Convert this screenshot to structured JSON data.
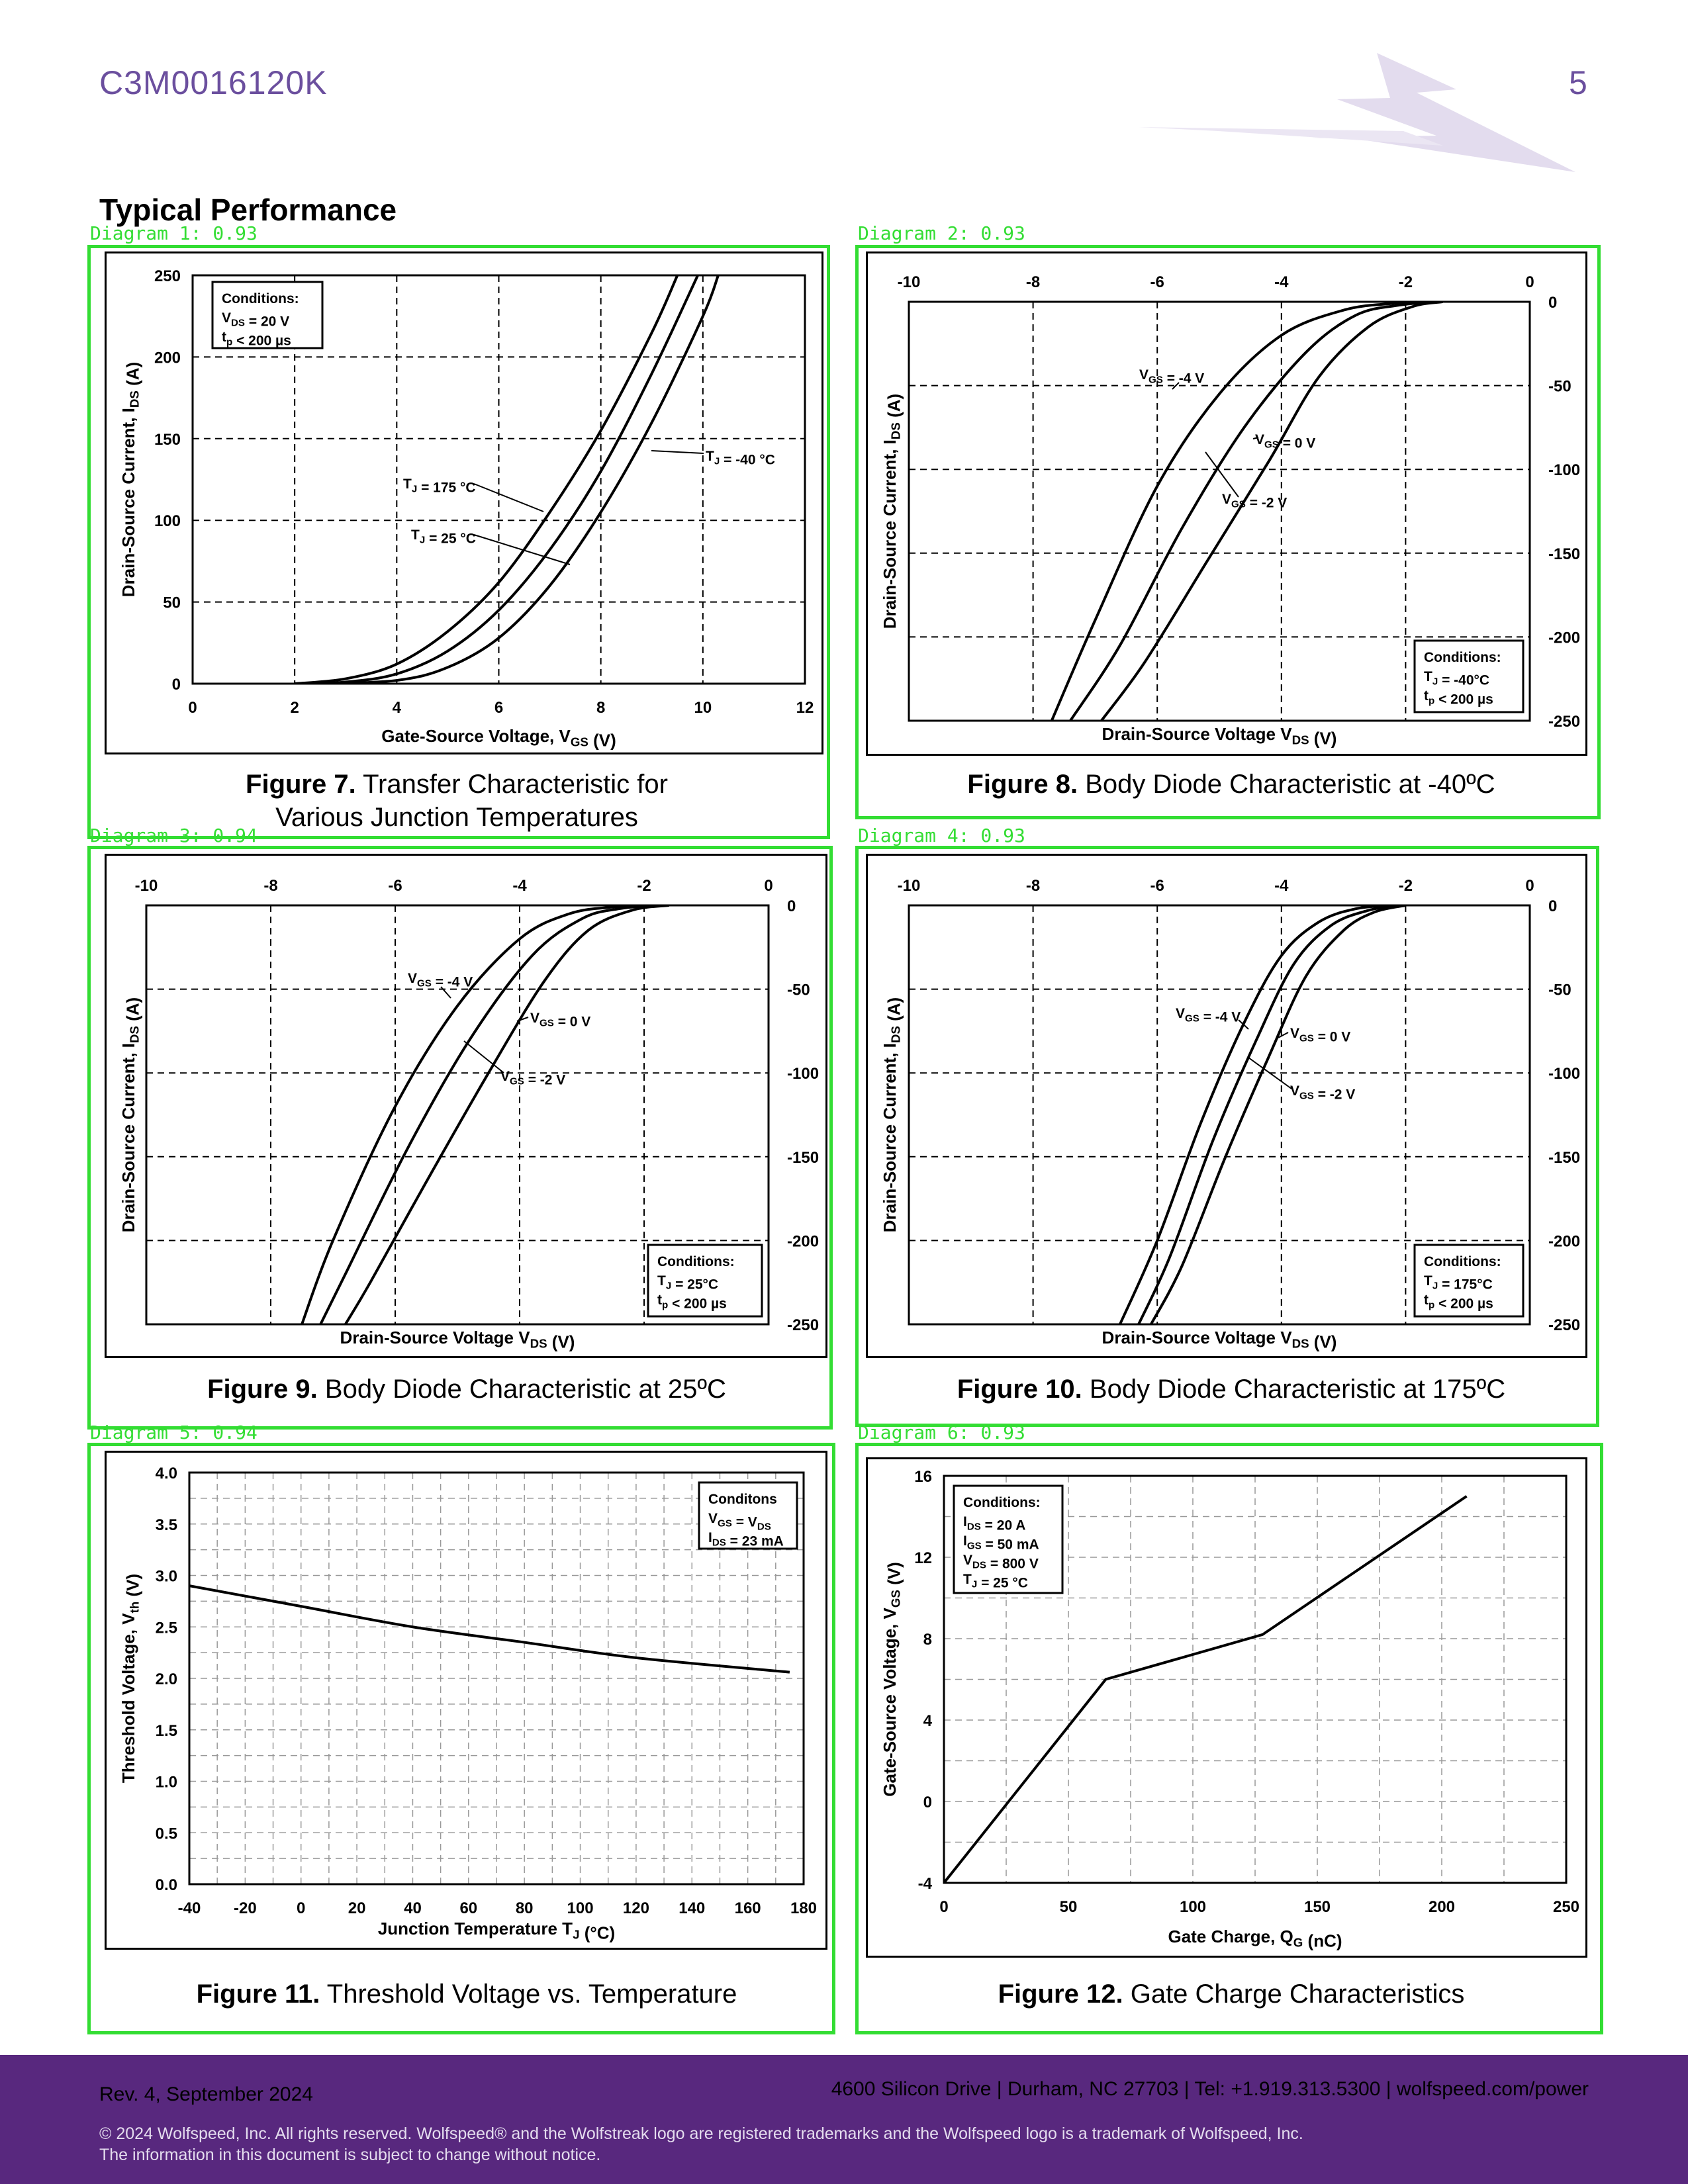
{
  "header": {
    "part_number": "C3M0016120K",
    "page_number": "5",
    "section_title": "Typical Performance"
  },
  "detections": [
    {
      "label": "Diagram 1: 0.93"
    },
    {
      "label": "Diagram 2: 0.93"
    },
    {
      "label": "Diagram 3: 0.94"
    },
    {
      "label": "Diagram 4: 0.93"
    },
    {
      "label": "Diagram 5: 0.94"
    },
    {
      "label": "Diagram 6: 0.93"
    }
  ],
  "figures": [
    {
      "number": "Figure 7.",
      "caption_line1": "Transfer Characteristic for",
      "caption_line2": "Various Junction Temperatures"
    },
    {
      "number": "Figure 8.",
      "caption": "Body Diode Characteristic at -40ºC"
    },
    {
      "number": "Figure 9.",
      "caption": "Body Diode Characteristic at 25ºC"
    },
    {
      "number": "Figure 10.",
      "caption": "Body Diode Characteristic at 175ºC"
    },
    {
      "number": "Figure 11.",
      "caption": "Threshold Voltage vs. Temperature"
    },
    {
      "number": "Figure 12.",
      "caption": "Gate Charge Characteristics"
    }
  ],
  "chart_data": [
    {
      "id": "fig7",
      "type": "line",
      "xlabel": "Gate-Source Voltage, VGS (V)",
      "ylabel": "Drain-Source Current, IDS (A)",
      "xlim": [
        0,
        12
      ],
      "ylim": [
        0,
        250
      ],
      "xticks": [
        0,
        2,
        4,
        6,
        8,
        10,
        12
      ],
      "yticks": [
        0,
        50,
        100,
        150,
        200,
        250
      ],
      "conditions": [
        "Conditions:",
        "VDS = 20 V",
        "tp < 200 µs"
      ],
      "series": [
        {
          "name": "TJ = 175 °C",
          "x": [
            2,
            3,
            4,
            5,
            6,
            7,
            8,
            9,
            9.5
          ],
          "y": [
            0,
            3,
            12,
            32,
            62,
            105,
            155,
            215,
            250
          ]
        },
        {
          "name": "TJ = 25 °C",
          "x": [
            2,
            3,
            4,
            5,
            6,
            7,
            8,
            9,
            9.9
          ],
          "y": [
            0,
            1,
            6,
            20,
            45,
            82,
            130,
            190,
            250
          ]
        },
        {
          "name": "TJ = -40 °C",
          "x": [
            2.5,
            4,
            5,
            6,
            7,
            8,
            9,
            10,
            10.3
          ],
          "y": [
            0,
            2,
            10,
            28,
            60,
            105,
            160,
            225,
            250
          ]
        }
      ],
      "annotations": [
        "TJ = 175 °C",
        "TJ = 25 °C",
        "TJ = -40 °C"
      ]
    },
    {
      "id": "fig8",
      "type": "line",
      "xlabel": "Drain-Source Voltage VDS (V)",
      "ylabel": "Drain-Source Current, IDS (A)",
      "xlim": [
        -10,
        0
      ],
      "ylim": [
        -250,
        0
      ],
      "xticks": [
        -10,
        -8,
        -6,
        -4,
        -2,
        0
      ],
      "yticks": [
        0,
        -50,
        -100,
        -150,
        -200,
        -250
      ],
      "conditions": [
        "Conditions:",
        "TJ = -40°C",
        "tp < 200 µs"
      ],
      "series": [
        {
          "name": "VGS = -4 V",
          "x": [
            -1.6,
            -2.2,
            -3,
            -4,
            -5,
            -6,
            -7,
            -7.7
          ],
          "y": [
            0,
            -1,
            -5,
            -20,
            -55,
            -110,
            -190,
            -250
          ]
        },
        {
          "name": "VGS = 0 V",
          "x": [
            -1.5,
            -2.1,
            -2.8,
            -3.6,
            -4.6,
            -5.6,
            -6.6,
            -7.4
          ],
          "y": [
            0,
            -2,
            -8,
            -30,
            -75,
            -135,
            -205,
            -250
          ]
        },
        {
          "name": "VGS = -2 V",
          "x": [
            -1.4,
            -1.9,
            -2.6,
            -3.4,
            -4.2,
            -5.2,
            -6.2,
            -6.9
          ],
          "y": [
            0,
            -3,
            -15,
            -45,
            -95,
            -155,
            -215,
            -250
          ]
        }
      ],
      "annotations": [
        "VGS = -4 V",
        "VGS = 0 V",
        "VGS = -2 V"
      ]
    },
    {
      "id": "fig9",
      "type": "line",
      "xlabel": "Drain-Source Voltage VDS (V)",
      "ylabel": "Drain-Source Current, IDS (A)",
      "xlim": [
        -10,
        0
      ],
      "ylim": [
        -250,
        0
      ],
      "xticks": [
        -10,
        -8,
        -6,
        -4,
        -2,
        0
      ],
      "yticks": [
        0,
        -50,
        -100,
        -150,
        -200,
        -250
      ],
      "conditions": [
        "Conditions:",
        "TJ = 25°C",
        "tp < 200 µs"
      ],
      "series": [
        {
          "name": "VGS = -4 V",
          "x": [
            -1.9,
            -2.5,
            -3.2,
            -4,
            -5,
            -6,
            -7,
            -7.5
          ],
          "y": [
            0,
            -1,
            -5,
            -20,
            -60,
            -120,
            -200,
            -250
          ]
        },
        {
          "name": "VGS = 0 V",
          "x": [
            -1.8,
            -2.4,
            -3,
            -3.8,
            -4.8,
            -5.8,
            -6.8,
            -7.2
          ],
          "y": [
            0,
            -2,
            -8,
            -30,
            -80,
            -145,
            -220,
            -250
          ]
        },
        {
          "name": "VGS = -2 V",
          "x": [
            -1.6,
            -2.2,
            -2.9,
            -3.6,
            -4.5,
            -5.5,
            -6.4,
            -6.8
          ],
          "y": [
            0,
            -3,
            -15,
            -45,
            -100,
            -165,
            -225,
            -250
          ]
        }
      ],
      "annotations": [
        "VGS = -4 V",
        "VGS = 0 V",
        "VGS = -2 V"
      ]
    },
    {
      "id": "fig10",
      "type": "line",
      "xlabel": "Drain-Source Voltage VDS (V)",
      "ylabel": "Drain-Source Current, IDS (A)",
      "xlim": [
        -10,
        0
      ],
      "ylim": [
        -250,
        0
      ],
      "xticks": [
        -10,
        -8,
        -6,
        -4,
        -2,
        0
      ],
      "yticks": [
        0,
        -50,
        -100,
        -150,
        -200,
        -250
      ],
      "conditions": [
        "Conditions:",
        "TJ = 175°C",
        "tp < 200 µs"
      ],
      "series": [
        {
          "name": "VGS = -4 V",
          "x": [
            -2.2,
            -2.8,
            -3.4,
            -4,
            -4.6,
            -5.3,
            -6,
            -6.6
          ],
          "y": [
            0,
            -2,
            -10,
            -30,
            -70,
            -130,
            -200,
            -250
          ]
        },
        {
          "name": "VGS = 0 V",
          "x": [
            -2.1,
            -2.6,
            -3.2,
            -3.8,
            -4.4,
            -5.1,
            -5.8,
            -6.3
          ],
          "y": [
            0,
            -3,
            -12,
            -35,
            -80,
            -140,
            -210,
            -250
          ]
        },
        {
          "name": "VGS = -2 V",
          "x": [
            -2,
            -2.5,
            -3,
            -3.6,
            -4.2,
            -4.9,
            -5.6,
            -6.1
          ],
          "y": [
            0,
            -4,
            -15,
            -42,
            -90,
            -150,
            -215,
            -250
          ]
        }
      ],
      "annotations": [
        "VGS = -4 V",
        "VGS = 0 V",
        "VGS = -2 V"
      ]
    },
    {
      "id": "fig11",
      "type": "line",
      "xlabel": "Junction Temperature TJ (°C)",
      "ylabel": "Threshold Voltage, Vth (V)",
      "xlim": [
        -40,
        180
      ],
      "ylim": [
        0,
        4
      ],
      "xticks": [
        -40,
        -20,
        0,
        20,
        40,
        60,
        80,
        100,
        120,
        140,
        160,
        180
      ],
      "yticks": [
        0,
        0.5,
        1,
        1.5,
        2,
        2.5,
        3,
        3.5,
        4
      ],
      "conditions": [
        "Conditons",
        "VGS = VDS",
        "IDS = 23 mA"
      ],
      "series": [
        {
          "name": "",
          "x": [
            -40,
            0,
            40,
            80,
            120,
            175
          ],
          "y": [
            2.9,
            2.7,
            2.5,
            2.35,
            2.2,
            2.06
          ]
        }
      ]
    },
    {
      "id": "fig12",
      "type": "line",
      "xlabel": "Gate Charge, QG (nC)",
      "ylabel": "Gate-Source Voltage, VGS (V)",
      "xlim": [
        0,
        250
      ],
      "ylim": [
        -4,
        16
      ],
      "xticks": [
        0,
        50,
        100,
        150,
        200,
        250
      ],
      "yticks": [
        -4,
        0,
        4,
        8,
        12,
        16
      ],
      "conditions": [
        "Conditions:",
        "IDS = 20 A",
        "IGS = 50 mA",
        "VDS = 800 V",
        "TJ = 25 °C"
      ],
      "series": [
        {
          "name": "",
          "x": [
            0,
            65,
            128,
            210
          ],
          "y": [
            -4,
            6,
            8.2,
            15
          ]
        }
      ]
    }
  ],
  "footer": {
    "revision": "Rev. 4, September 2024",
    "address": "4600 Silicon Drive  |  Durham, NC 27703  |  Tel: +1.919.313.5300  |  wolfspeed.com/power",
    "copyright_line1": "© 2024 Wolfspeed, Inc. All rights reserved. Wolfspeed® and the Wolfstreak logo are registered trademarks and the Wolfspeed logo is a trademark of Wolfspeed, Inc.",
    "copyright_line2": "The information in this document is subject to change without notice."
  },
  "colors": {
    "brand": "#58287e",
    "accent": "#6b4f9e",
    "detection": "#33dd33"
  }
}
